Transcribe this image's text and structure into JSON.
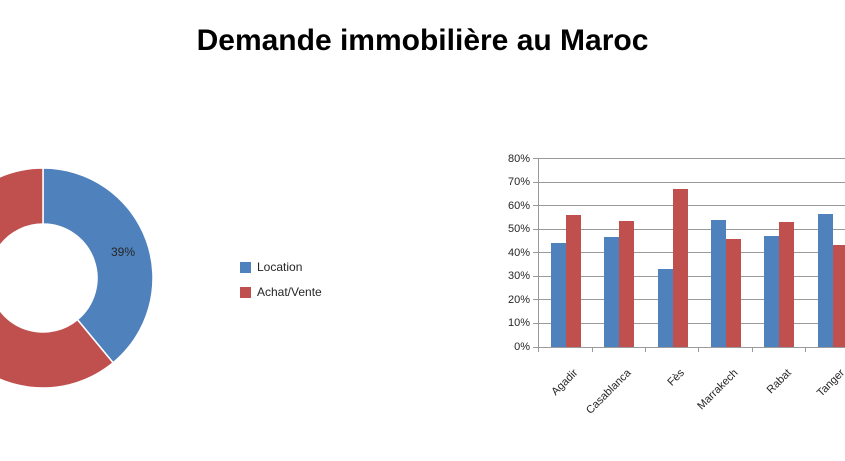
{
  "title": "Demande immobilière au Maroc",
  "colors": {
    "location_blue": "#4F81BD",
    "achat_vente_red": "#C0504D",
    "gridline_gray": "#9A9A9A",
    "text_dark": "#262626"
  },
  "chart_data": [
    {
      "type": "pie",
      "subtype": "donut",
      "slices": [
        {
          "label": "Location",
          "value": 39,
          "color": "#4F81BD"
        },
        {
          "label": "Achat/Vente",
          "value": 61,
          "color": "#C0504D"
        }
      ],
      "data_label_shown": "39%",
      "start_angle_deg": 0,
      "legend_position": "right-of-donut"
    },
    {
      "type": "bar",
      "categories": [
        "Agadir",
        "Casablanca",
        "Fès",
        "Marrakech",
        "Rabat",
        "Tanger"
      ],
      "series": [
        {
          "name": "Location",
          "color": "#4F81BD",
          "values": [
            44,
            46.5,
            33,
            54,
            47,
            56.5
          ]
        },
        {
          "name": "Achat/Vente",
          "color": "#C0504D",
          "values": [
            56,
            53.5,
            67,
            46,
            53,
            43.5
          ]
        }
      ],
      "ylim": [
        0,
        80
      ],
      "ytick_step": 10,
      "ytick_labels": [
        "0%",
        "10%",
        "20%",
        "30%",
        "40%",
        "50%",
        "60%",
        "70%",
        "80%"
      ],
      "grid": true,
      "xlabel": "",
      "ylabel": "",
      "legend": "shared-with-donut"
    }
  ]
}
